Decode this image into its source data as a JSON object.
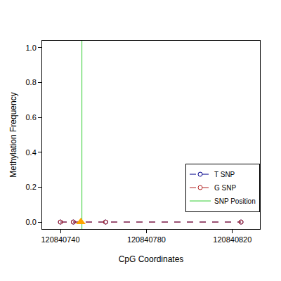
{
  "chart_data": {
    "type": "line",
    "x_label": "CpG Coordinates",
    "y_label": "Methylation Frequency",
    "xlim": [
      120840731.5,
      120840832.8
    ],
    "xticks": [
      120840740,
      120840780,
      120840820
    ],
    "ylim": [
      -0.04,
      1.04
    ],
    "yticks": [
      0.0,
      0.2,
      0.4,
      0.6,
      0.8,
      1.0
    ],
    "legend": "right",
    "grid": false,
    "series": [
      {
        "name": "T SNP",
        "color": "#00008b",
        "marker": "open-circle",
        "line_style": "dash",
        "x": [
          120840740,
          120840746,
          120840761,
          120840824
        ],
        "values": [
          0,
          0,
          0,
          0
        ]
      },
      {
        "name": "G SNP",
        "color": "#b22222",
        "marker": "open-circle",
        "line_style": "dash",
        "x": [
          120840740,
          120840746,
          120840761,
          120840824
        ],
        "values": [
          0,
          0,
          0,
          0
        ]
      }
    ],
    "snp_position": {
      "name": "SNP Position",
      "color": "#32cd32",
      "x": 120840750
    },
    "snp_marker": {
      "x": 120840749.5,
      "y": 0,
      "color": "#ffa500",
      "marker": "triangle"
    }
  }
}
